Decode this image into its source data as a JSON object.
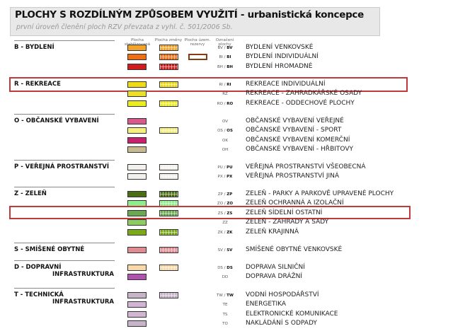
{
  "header": {
    "title": "PLOCHY S ROZDÍLNÝM ZPŮSOBEM VYUŽITÍ - urbanistická koncepce",
    "subtitle": "první úroveň členění ploch RZV převzata z vyhl. č. 501/2006 Sb."
  },
  "columns": [
    "Plocha stabilizovaná",
    "Plocha změny",
    "Plocha územ. rezervy",
    "Označení plochy"
  ],
  "groups": [
    {
      "name": "B - BYDLENÍ",
      "rows": [
        {
          "code": "BV",
          "change_code": "BV",
          "label": "BYDLENÍ VENKOVSKÉ",
          "color": "#f2a42a",
          "change": true
        },
        {
          "code": "BI",
          "change_code": "BI",
          "label": "BYDLENÍ INDIVIDUÁLNÍ",
          "color": "#ee6e14",
          "change": true,
          "reserve": true
        },
        {
          "code": "BH",
          "change_code": "BH",
          "label": "BYDLENÍ HROMADNÉ",
          "color": "#d01c1c",
          "change": true
        }
      ]
    },
    {
      "name": "R - REKREACE",
      "highlight_row": 0,
      "rows": [
        {
          "code": "RI",
          "change_code": "RI",
          "label": "REKREACE INDIVIDUÁLNÍ",
          "color": "#f0dc14",
          "change": true
        },
        {
          "code": "RZ",
          "label": "REKREACE - ZAHRADKÁŘSKÉ OSADY",
          "color": "#ecdf2a"
        },
        {
          "code": "RO",
          "change_code": "RO",
          "label": "REKREACE - ODDECHOVÉ PLOCHY",
          "color": "#ecec1e",
          "change": true
        }
      ]
    },
    {
      "name": "O - OBČANSKÉ VYBAVENÍ",
      "rows": [
        {
          "code": "OV",
          "label": "OBČANSKÉ VYBAVENÍ VEŘEJNÉ",
          "color": "#d85a8c"
        },
        {
          "code": "OS",
          "change_code": "OS",
          "label": "OBČANSKÉ VYBAVENÍ - SPORT",
          "color": "#f6f080",
          "change": true
        },
        {
          "code": "OK",
          "label": "OBČANSKÉ VYBAVENÍ KOMERČNÍ",
          "color": "#c8206c"
        },
        {
          "code": "OH",
          "label": "OBČANSKÉ VYBAVENÍ - HŘBITOVY",
          "color": "#c9b98f"
        }
      ]
    },
    {
      "name": "P - VEŘEJNÁ PROSTRANSTVÍ",
      "rows": [
        {
          "code": "PU",
          "change_code": "PU",
          "label": "VEŘEJNÁ PROSTRANSTVÍ VŠEOBECNÁ",
          "color": "#f3f1ed",
          "change": true
        },
        {
          "code": "PX",
          "change_code": "PX",
          "label": "VEŘEJNÁ PROSTRANSTVÍ JINÁ",
          "color": "#f3f1ed",
          "change": true
        }
      ]
    },
    {
      "name": "Z - ZELEŇ",
      "highlight_row": 2,
      "rows": [
        {
          "code": "ZP",
          "change_code": "ZP",
          "label": "ZELEŇ - PARKY A PARKOVĚ UPRAVENÉ PLOCHY",
          "color": "#4c6e12",
          "change": true
        },
        {
          "code": "ZO",
          "change_code": "ZO",
          "label": "ZELEŇ OCHRANNÁ A IZOLAČNÍ",
          "color": "#8cee8c",
          "change": true
        },
        {
          "code": "ZS",
          "change_code": "ZS",
          "label": "ZELEŇ SÍDELNÍ OSTATNÍ",
          "color": "#6aa852",
          "change": true
        },
        {
          "code": "ZZ",
          "label": "ZELEŇ - ZAHRADY A SADY",
          "color": "#8ccc62"
        },
        {
          "code": "ZK",
          "change_code": "ZK",
          "label": "ZELEŇ KRAJINNÁ",
          "color": "#7aaa18",
          "change": true
        }
      ]
    },
    {
      "name": "S - SMÍŠENÉ OBYTNÉ",
      "rows": [
        {
          "code": "SV",
          "change_code": "SV",
          "label": "SMÍŠENÉ OBYTNÉ VENKOVSKÉ",
          "color": "#e08a92",
          "change": true
        }
      ]
    },
    {
      "name": "D - DOPRAVNÍ",
      "name2": "INFRASTRUKTURA",
      "rows": [
        {
          "code": "DS",
          "change_code": "DS",
          "label": "DOPRAVA SILNIČNÍ",
          "color": "#f8d9a8",
          "change": true
        },
        {
          "code": "DD",
          "label": "DOPRAVA DRÁŽNÍ",
          "color": "#b052b0"
        }
      ]
    },
    {
      "name": "T - TECHNICKÁ",
      "name2": "INFRASTRUKTURA",
      "rows": [
        {
          "code": "TW",
          "change_code": "TW",
          "label": "VODNÍ HOSPODÁŘSTVÍ",
          "color": "#c8b4c8",
          "change": true
        },
        {
          "code": "TE",
          "label": "ENERGETIKA",
          "color": "#d4b4d4"
        },
        {
          "code": "TS",
          "label": "ELEKTRONICKÉ KOMUNIKACE",
          "color": "#d2b6d2"
        },
        {
          "code": "TO",
          "label": "NAKLÁDÁNÍ S ODPADY",
          "color": "#c8b4c8"
        }
      ]
    }
  ]
}
